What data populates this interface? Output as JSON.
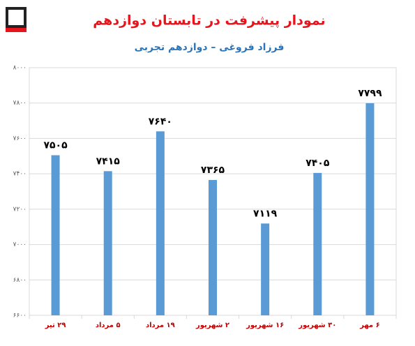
{
  "chart_data": {
    "type": "bar",
    "title": "نمودار پیشرفت در تابستان دوازدهم",
    "subtitle": "فرزاد فروغی – دوازدهم تجربی",
    "categories": [
      "۲۹ تیر",
      "۵ مرداد",
      "۱۹ مرداد",
      "۲ شهریور",
      "۱۶ شهریور",
      "۳۰ شهریور",
      "۶ مهر"
    ],
    "values": [
      7505,
      7415,
      7640,
      7365,
      7119,
      7405,
      7799
    ],
    "value_labels": [
      "۷۵۰۵",
      "۷۴۱۵",
      "۷۶۴۰",
      "۷۳۶۵",
      "۷۱۱۹",
      "۷۴۰۵",
      "۷۷۹۹"
    ],
    "color": "#5b9bd5",
    "ylim": [
      6600,
      8000
    ],
    "yticks": [
      {
        "value": 6600,
        "label": "۶۶۰۰"
      },
      {
        "value": 6800,
        "label": "۶۸۰۰"
      },
      {
        "value": 7000,
        "label": "۷۰۰۰"
      },
      {
        "value": 7200,
        "label": "۷۲۰۰"
      },
      {
        "value": 7400,
        "label": "۷۴۰۰"
      },
      {
        "value": 7600,
        "label": "۷۶۰۰"
      },
      {
        "value": 7800,
        "label": "۷۸۰۰"
      },
      {
        "value": 8000,
        "label": "۸۰۰۰"
      }
    ],
    "grid": true
  }
}
